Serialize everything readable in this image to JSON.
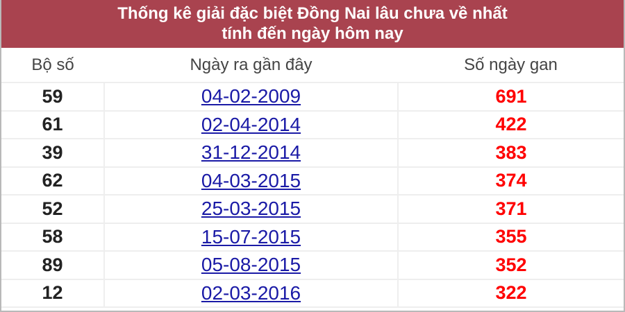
{
  "title_line1": "Thống kê giải đặc biệt Đồng Nai lâu chưa về nhất",
  "title_line2": "tính đến ngày hôm nay",
  "columns": [
    "Bộ số",
    "Ngày ra gần đây",
    "Số ngày gan"
  ],
  "rows": [
    {
      "number": "59",
      "date": "04-02-2009",
      "days": "691"
    },
    {
      "number": "61",
      "date": "02-04-2014",
      "days": "422"
    },
    {
      "number": "39",
      "date": "31-12-2014",
      "days": "383"
    },
    {
      "number": "62",
      "date": "04-03-2015",
      "days": "374"
    },
    {
      "number": "52",
      "date": "25-03-2015",
      "days": "371"
    },
    {
      "number": "58",
      "date": "15-07-2015",
      "days": "355"
    },
    {
      "number": "89",
      "date": "05-08-2015",
      "days": "352"
    },
    {
      "number": "12",
      "date": "02-03-2016",
      "days": "322"
    }
  ],
  "colors": {
    "header_bg": "#a9434f",
    "link": "#1a1aa6",
    "days": "#ff0000"
  }
}
